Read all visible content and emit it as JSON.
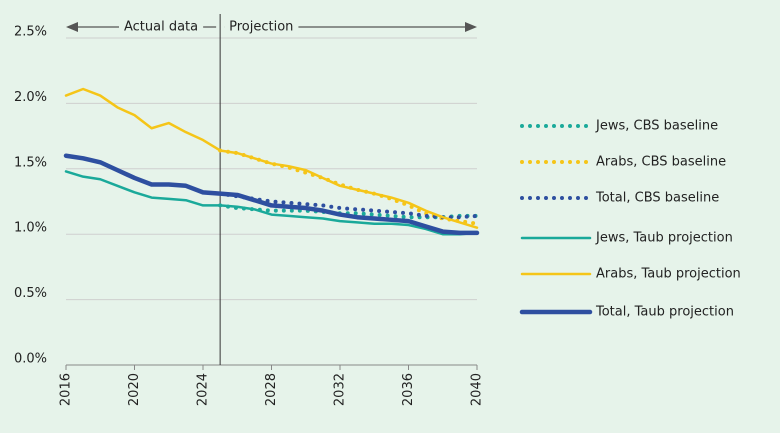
{
  "chart_data": {
    "type": "line",
    "x": [
      2016,
      2017,
      2018,
      2019,
      2020,
      2021,
      2022,
      2023,
      2024,
      2025,
      2026,
      2027,
      2028,
      2029,
      2030,
      2031,
      2032,
      2033,
      2034,
      2035,
      2036,
      2037,
      2038,
      2039,
      2040
    ],
    "xlim": [
      2016,
      2040
    ],
    "xticks": [
      2016,
      2020,
      2024,
      2028,
      2032,
      2036,
      2040
    ],
    "ylim": [
      0,
      2.5
    ],
    "yticks": [
      {
        "value": 0,
        "label": "0.0%"
      },
      {
        "value": 0.5,
        "label": "0.5%"
      },
      {
        "value": 1,
        "label": "1.0%"
      },
      {
        "value": 1.5,
        "label": "1.5%"
      },
      {
        "value": 2,
        "label": "2.0%"
      },
      {
        "value": 2.5,
        "label": "2.5%"
      }
    ],
    "grid": true,
    "divider_x": 2025,
    "annotations": [
      "Actual data",
      "Projection"
    ],
    "series": [
      {
        "name": "Jews, CBS baseline",
        "color": "#1aa99a",
        "style": "dotted",
        "linewidth": 4,
        "values": [
          null,
          null,
          null,
          null,
          null,
          null,
          null,
          null,
          null,
          1.22,
          1.2,
          1.19,
          1.18,
          1.18,
          1.18,
          1.17,
          1.16,
          1.16,
          1.15,
          1.14,
          1.13,
          1.13,
          1.13,
          1.14,
          1.14
        ]
      },
      {
        "name": "Arabs, CBS baseline",
        "color": "#f5c518",
        "style": "dotted",
        "linewidth": 4,
        "values": [
          null,
          null,
          null,
          null,
          null,
          null,
          null,
          null,
          null,
          1.64,
          1.62,
          1.58,
          1.54,
          1.51,
          1.47,
          1.43,
          1.38,
          1.34,
          1.31,
          1.27,
          1.22,
          1.16,
          1.12,
          1.1,
          1.08
        ]
      },
      {
        "name": "Total, CBS baseline",
        "color": "#2e4fa0",
        "style": "dotted",
        "linewidth": 4,
        "values": [
          null,
          null,
          null,
          null,
          null,
          null,
          null,
          null,
          null,
          1.31,
          1.29,
          1.27,
          1.25,
          1.24,
          1.23,
          1.22,
          1.2,
          1.19,
          1.18,
          1.17,
          1.16,
          1.14,
          1.13,
          1.13,
          1.14
        ]
      },
      {
        "name": "Jews, Taub projection",
        "color": "#1aa99a",
        "style": "solid",
        "linewidth": 2.5,
        "values": [
          1.48,
          1.44,
          1.42,
          1.37,
          1.32,
          1.28,
          1.27,
          1.26,
          1.22,
          1.22,
          1.21,
          1.19,
          1.15,
          1.14,
          1.13,
          1.12,
          1.1,
          1.09,
          1.08,
          1.08,
          1.07,
          1.04,
          1.0,
          1.0,
          1.01
        ]
      },
      {
        "name": "Arabs, Taub projection",
        "color": "#f5c518",
        "style": "solid",
        "linewidth": 2.5,
        "values": [
          2.06,
          2.11,
          2.06,
          1.97,
          1.91,
          1.81,
          1.85,
          1.78,
          1.72,
          1.64,
          1.62,
          1.58,
          1.54,
          1.52,
          1.49,
          1.43,
          1.37,
          1.34,
          1.31,
          1.28,
          1.24,
          1.18,
          1.13,
          1.09,
          1.05
        ]
      },
      {
        "name": "Total, Taub projection",
        "color": "#2e4fa0",
        "style": "solid",
        "linewidth": 4.5,
        "values": [
          1.6,
          1.58,
          1.55,
          1.49,
          1.43,
          1.38,
          1.38,
          1.37,
          1.32,
          1.31,
          1.3,
          1.26,
          1.22,
          1.21,
          1.2,
          1.18,
          1.15,
          1.13,
          1.12,
          1.11,
          1.1,
          1.06,
          1.02,
          1.01,
          1.01
        ]
      }
    ]
  }
}
